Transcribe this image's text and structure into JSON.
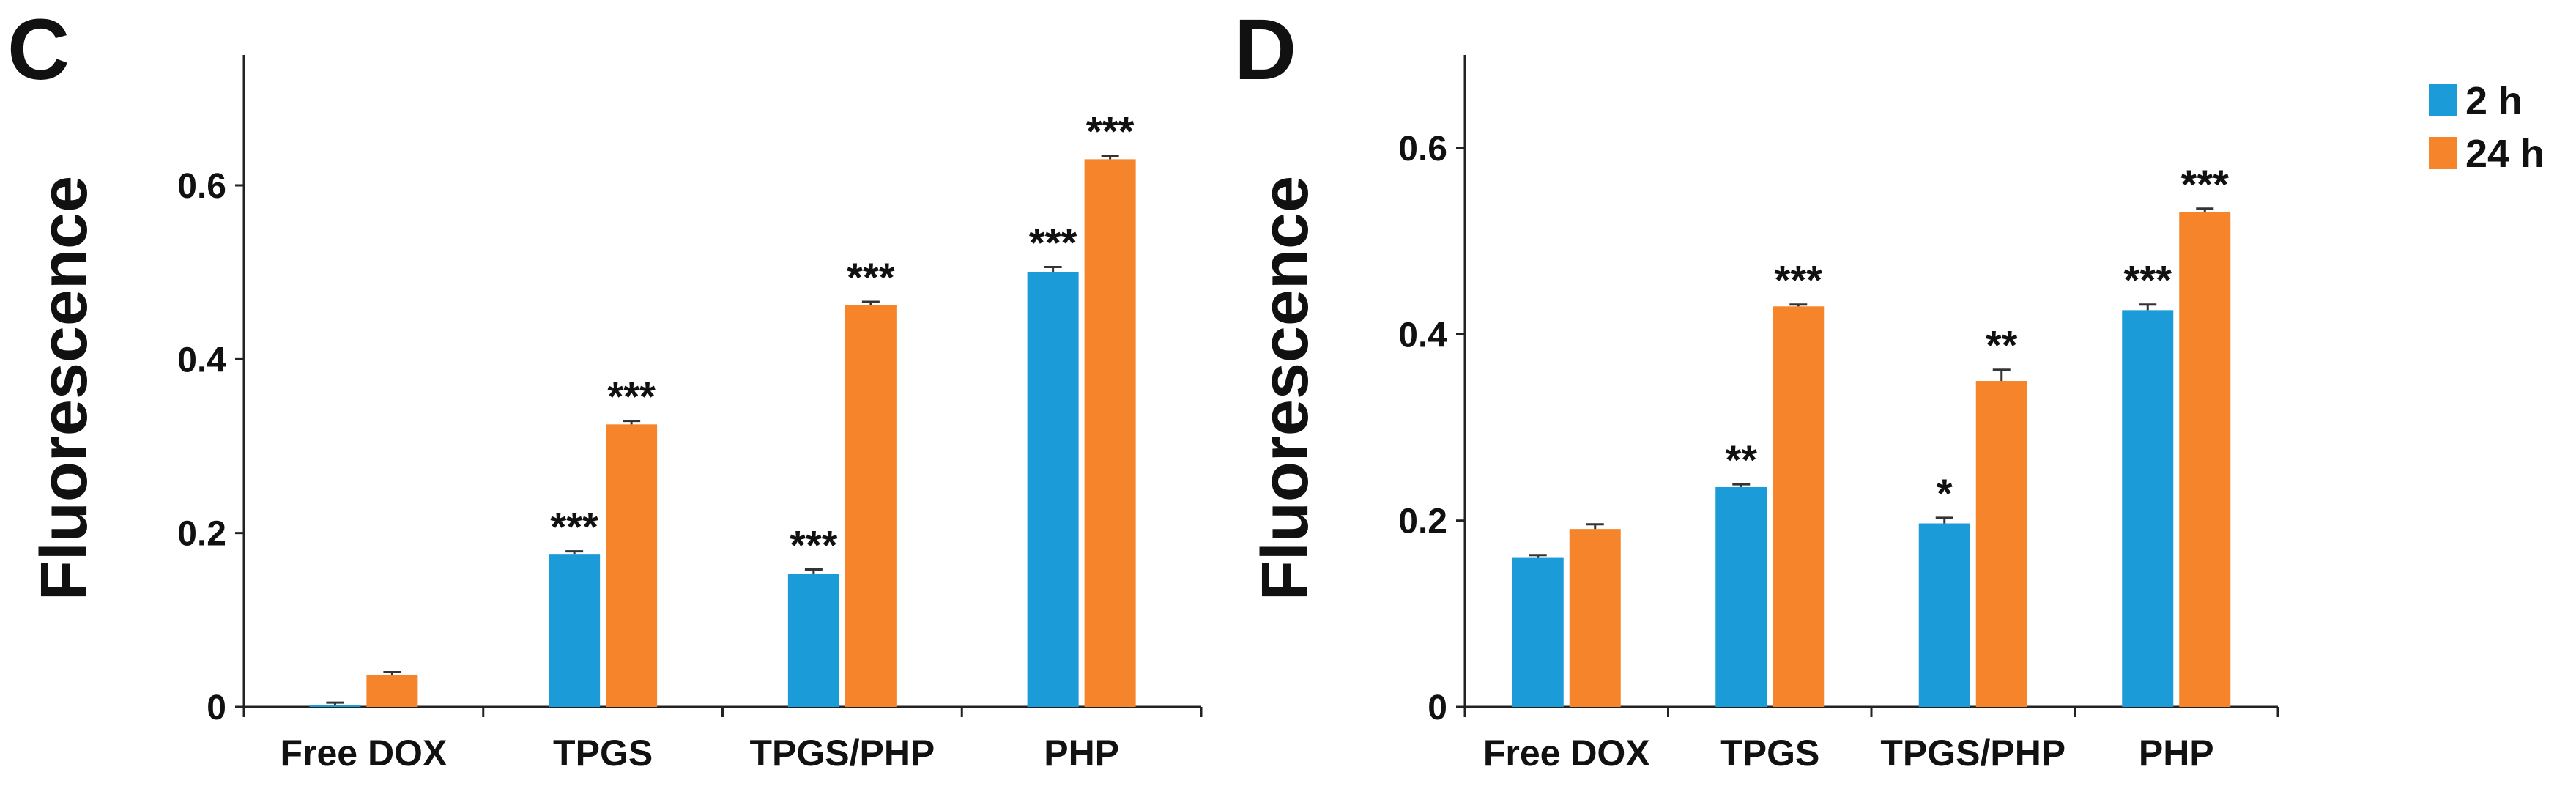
{
  "colors": {
    "series_2h": "#1b9bd7",
    "series_24h": "#f5842a"
  },
  "legend": [
    {
      "label": "2 h",
      "color": "#1b9bd7"
    },
    {
      "label": "24 h",
      "color": "#f5842a"
    }
  ],
  "chart_data": [
    {
      "panel": "C",
      "type": "bar",
      "ylabel": "Fluorescence",
      "xlabel": "",
      "ylim": [
        0,
        0.75
      ],
      "yticks": [
        0,
        0.2,
        0.4,
        0.6
      ],
      "ytick_labels": [
        "0",
        "0.2",
        "0.4",
        "0.6"
      ],
      "categories": [
        "Free DOX",
        "TPGS",
        "TPGS/PHP",
        "PHP"
      ],
      "series": [
        {
          "name": "2 h",
          "values": [
            0.002,
            0.176,
            0.153,
            0.5
          ],
          "errors": [
            0.003,
            0.003,
            0.005,
            0.006
          ],
          "significance": [
            "",
            "***",
            "***",
            "***"
          ]
        },
        {
          "name": "24 h",
          "values": [
            0.037,
            0.325,
            0.462,
            0.63
          ],
          "errors": [
            0.003,
            0.004,
            0.004,
            0.004
          ],
          "significance": [
            "",
            "***",
            "***",
            "***"
          ]
        }
      ]
    },
    {
      "panel": "D",
      "type": "bar",
      "ylabel": "Fluorescence",
      "xlabel": "",
      "ylim": [
        0,
        0.7
      ],
      "yticks": [
        0,
        0.2,
        0.4,
        0.6
      ],
      "ytick_labels": [
        "0",
        "0.2",
        "0.4",
        "0.6"
      ],
      "categories": [
        "Free DOX",
        "TPGS",
        "TPGS/PHP",
        "PHP"
      ],
      "series": [
        {
          "name": "2 h",
          "values": [
            0.16,
            0.236,
            0.197,
            0.426
          ],
          "errors": [
            0.003,
            0.003,
            0.006,
            0.006
          ],
          "significance": [
            "",
            "**",
            "*",
            "***"
          ]
        },
        {
          "name": "24 h",
          "values": [
            0.191,
            0.43,
            0.35,
            0.531
          ],
          "errors": [
            0.005,
            0.002,
            0.012,
            0.004
          ],
          "significance": [
            "",
            "***",
            "**",
            "***"
          ]
        }
      ]
    }
  ]
}
